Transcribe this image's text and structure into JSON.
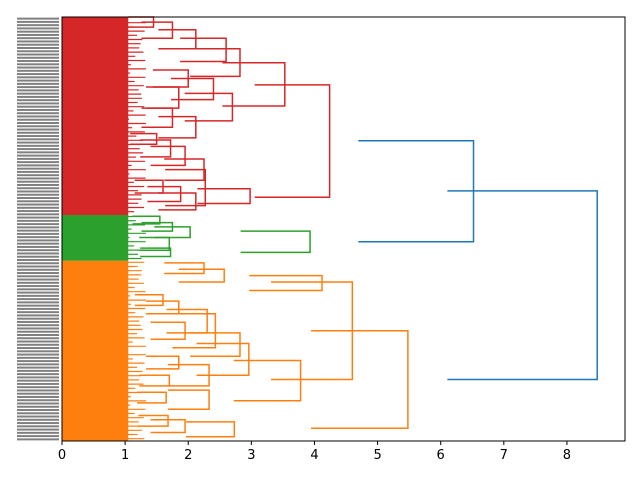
{
  "chart_data": {
    "type": "dendrogram",
    "orientation": "horizontal",
    "xlim": [
      0,
      8.92
    ],
    "x_ticks": [
      0,
      1,
      2,
      3,
      4,
      5,
      6,
      7,
      8
    ],
    "x_tick_labels": [
      "0",
      "1",
      "2",
      "3",
      "4",
      "5",
      "6",
      "7",
      "8"
    ],
    "leaf_label_count": 130,
    "clusters": [
      {
        "color": "#d62728",
        "leaf_fraction": [
          0.0,
          0.467
        ],
        "merges": [
          {
            "height": 1.45,
            "span": [
              0.0,
              0.024
            ]
          },
          {
            "height": 1.75,
            "span": [
              0.012,
              0.05
            ]
          },
          {
            "height": 2.12,
            "span": [
              0.03,
              0.075
            ]
          },
          {
            "height": 2.6,
            "span": [
              0.05,
              0.105
            ]
          },
          {
            "height": 2.82,
            "span": [
              0.075,
              0.14
            ]
          },
          {
            "height": 2.0,
            "span": [
              0.125,
              0.165
            ]
          },
          {
            "height": 2.4,
            "span": [
              0.145,
              0.195
            ]
          },
          {
            "height": 1.85,
            "span": [
              0.165,
              0.215
            ]
          },
          {
            "height": 2.7,
            "span": [
              0.18,
              0.245
            ]
          },
          {
            "height": 1.75,
            "span": [
              0.215,
              0.26
            ]
          },
          {
            "height": 2.12,
            "span": [
              0.235,
              0.285
            ]
          },
          {
            "height": 3.53,
            "span": [
              0.108,
              0.21
            ]
          },
          {
            "height": 1.5,
            "span": [
              0.275,
              0.3
            ]
          },
          {
            "height": 1.72,
            "span": [
              0.29,
              0.33
            ]
          },
          {
            "height": 1.95,
            "span": [
              0.305,
              0.35
            ]
          },
          {
            "height": 2.25,
            "span": [
              0.335,
              0.385
            ]
          },
          {
            "height": 1.6,
            "span": [
              0.385,
              0.415
            ]
          },
          {
            "height": 1.88,
            "span": [
              0.4,
              0.435
            ]
          },
          {
            "height": 2.12,
            "span": [
              0.415,
              0.455
            ]
          },
          {
            "height": 2.27,
            "span": [
              0.36,
              0.445
            ]
          },
          {
            "height": 2.98,
            "span": [
              0.405,
              0.44
            ]
          },
          {
            "height": 4.24,
            "span": [
              0.16,
              0.425
            ]
          }
        ]
      },
      {
        "color": "#2ca02c",
        "leaf_fraction": [
          0.467,
          0.575
        ],
        "merges": [
          {
            "height": 1.55,
            "span": [
              0.47,
              0.488
            ]
          },
          {
            "height": 1.75,
            "span": [
              0.485,
              0.505
            ]
          },
          {
            "height": 2.03,
            "span": [
              0.495,
              0.52
            ]
          },
          {
            "height": 1.7,
            "span": [
              0.52,
              0.55
            ]
          },
          {
            "height": 1.72,
            "span": [
              0.545,
              0.565
            ]
          },
          {
            "height": 3.93,
            "span": [
              0.505,
              0.555
            ]
          }
        ]
      },
      {
        "color": "#ff7f0e",
        "leaf_fraction": [
          0.575,
          1.0
        ],
        "merges": [
          {
            "height": 2.25,
            "span": [
              0.58,
              0.605
            ]
          },
          {
            "height": 2.57,
            "span": [
              0.595,
              0.625
            ]
          },
          {
            "height": 4.12,
            "span": [
              0.61,
              0.645
            ]
          },
          {
            "height": 1.6,
            "span": [
              0.655,
              0.68
            ]
          },
          {
            "height": 1.85,
            "span": [
              0.67,
              0.7
            ]
          },
          {
            "height": 2.3,
            "span": [
              0.69,
              0.745
            ]
          },
          {
            "height": 1.95,
            "span": [
              0.72,
              0.76
            ]
          },
          {
            "height": 2.43,
            "span": [
              0.7,
              0.78
            ]
          },
          {
            "height": 2.82,
            "span": [
              0.745,
              0.8
            ]
          },
          {
            "height": 1.85,
            "span": [
              0.8,
              0.83
            ]
          },
          {
            "height": 1.7,
            "span": [
              0.845,
              0.87
            ]
          },
          {
            "height": 2.33,
            "span": [
              0.82,
              0.87
            ]
          },
          {
            "height": 2.96,
            "span": [
              0.77,
              0.845
            ]
          },
          {
            "height": 1.65,
            "span": [
              0.885,
              0.91
            ]
          },
          {
            "height": 2.33,
            "span": [
              0.88,
              0.925
            ]
          },
          {
            "height": 3.78,
            "span": [
              0.81,
              0.905
            ]
          },
          {
            "height": 1.68,
            "span": [
              0.94,
              0.965
            ]
          },
          {
            "height": 1.95,
            "span": [
              0.95,
              0.98
            ]
          },
          {
            "height": 2.73,
            "span": [
              0.955,
              0.99
            ]
          },
          {
            "height": 4.6,
            "span": [
              0.625,
              0.855
            ]
          },
          {
            "height": 5.48,
            "span": [
              0.74,
              0.97
            ]
          }
        ]
      }
    ],
    "root_merges": [
      {
        "height": 6.52,
        "span": [
          0.292,
          0.53
        ],
        "color": "#1f77b4"
      },
      {
        "height": 8.48,
        "span": [
          0.41,
          0.855
        ],
        "color": "#1f77b4"
      }
    ]
  }
}
